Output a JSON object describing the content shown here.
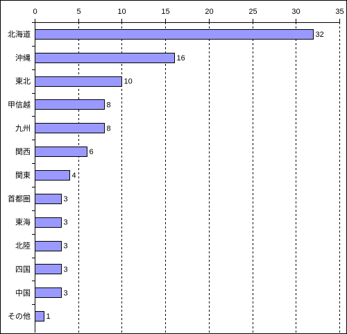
{
  "chart_data": {
    "type": "bar",
    "orientation": "horizontal",
    "title": "",
    "xlabel": "",
    "ylabel": "",
    "xlim": [
      0,
      35
    ],
    "tick_values": [
      0,
      5,
      10,
      15,
      20,
      25,
      30,
      35
    ],
    "tick_labels": [
      "0",
      "5",
      "10",
      "15",
      "20",
      "25",
      "30",
      "35"
    ],
    "grid": "vertical dashed",
    "categories": [
      "北海道",
      "沖縄",
      "東北",
      "甲信越",
      "九州",
      "関西",
      "関東",
      "首都圏",
      "東海",
      "北陸",
      "四国",
      "中国",
      "その他"
    ],
    "values": [
      32,
      16,
      10,
      8,
      8,
      6,
      4,
      3,
      3,
      3,
      3,
      3,
      1
    ],
    "value_labels": [
      "32",
      "16",
      "10",
      "8",
      "8",
      "6",
      "4",
      "3",
      "3",
      "3",
      "3",
      "3",
      "1"
    ],
    "colors": {
      "bar_fill": "#9999ff",
      "bar_stroke": "#000000",
      "grid": "#000000",
      "axis": "#000000"
    }
  }
}
